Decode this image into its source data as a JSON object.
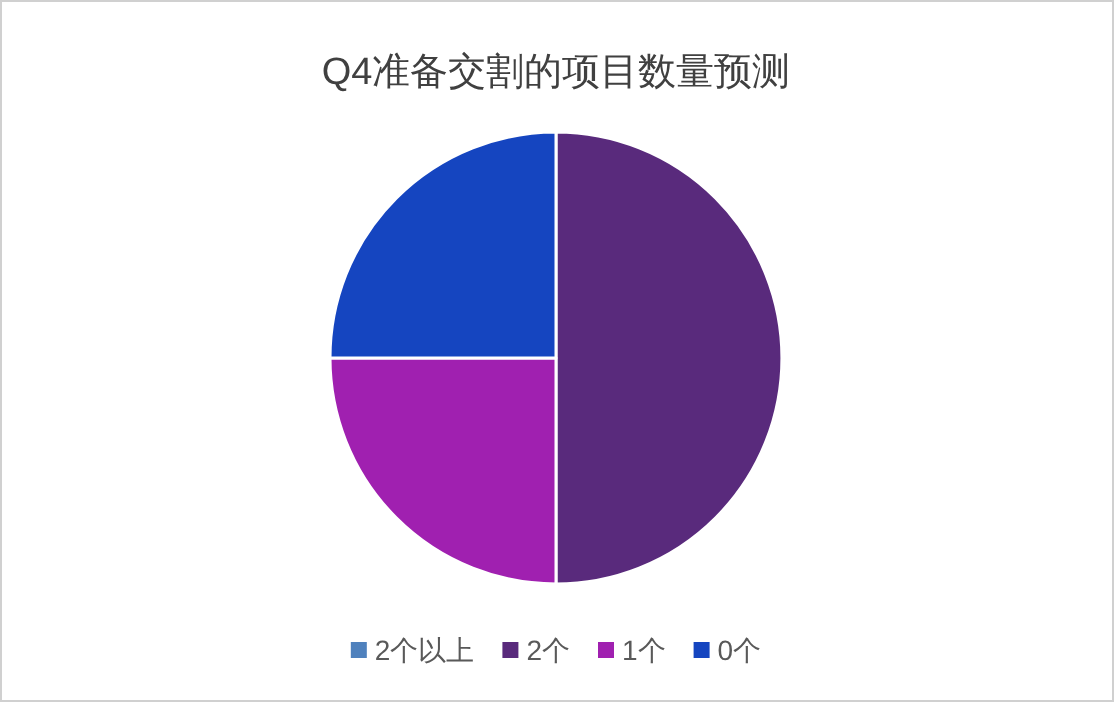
{
  "chart_data": {
    "type": "pie",
    "title": "Q4准备交割的项目数量预测",
    "categories": [
      "2个以上",
      "2个",
      "1个",
      "0个"
    ],
    "values": [
      0,
      50,
      25,
      25
    ],
    "colors": [
      "#4f81bd",
      "#592a7c",
      "#a020b0",
      "#1545c0"
    ],
    "legend": "bottom"
  }
}
